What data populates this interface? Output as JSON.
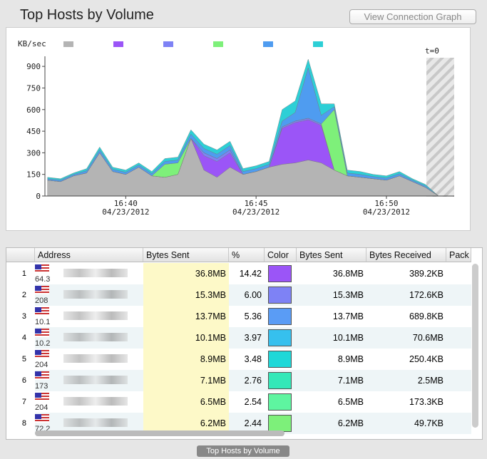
{
  "header": {
    "title": "Top Hosts by Volume",
    "button": "View Connection Graph"
  },
  "chart_data": {
    "type": "area",
    "stacked": true,
    "y_label": "KB/sec",
    "annotation": "t=0",
    "x": [
      37,
      37.5,
      38,
      38.5,
      39,
      39.5,
      40,
      40.5,
      41,
      41.5,
      42,
      42.5,
      43,
      43.5,
      44,
      44.5,
      45,
      45.5,
      46,
      46.5,
      47,
      47.5,
      48,
      48.5,
      49,
      49.5,
      50,
      50.5,
      51,
      51.5,
      52
    ],
    "xlim": [
      36.9,
      52.6
    ],
    "xticks": [
      {
        "value": 40,
        "label": "16:40"
      },
      {
        "value": 45,
        "label": "16:45"
      },
      {
        "value": 50,
        "label": "16:50"
      }
    ],
    "x_date_label": "04/23/2012",
    "ylim": [
      0,
      970
    ],
    "yticks": [
      0,
      150,
      300,
      450,
      600,
      750,
      900
    ],
    "series": [
      {
        "color": "#b4b4b4",
        "values": [
          110,
          100,
          140,
          160,
          300,
          170,
          150,
          200,
          140,
          130,
          150,
          400,
          180,
          130,
          200,
          150,
          170,
          200,
          220,
          230,
          250,
          230,
          180,
          140,
          130,
          120,
          110,
          140,
          100,
          60,
          0
        ]
      },
      {
        "color": "#9b55f7",
        "values": [
          0,
          0,
          0,
          0,
          0,
          0,
          0,
          0,
          0,
          0,
          0,
          0,
          100,
          110,
          100,
          0,
          0,
          0,
          250,
          280,
          280,
          260,
          0,
          0,
          0,
          0,
          0,
          0,
          0,
          0,
          0
        ]
      },
      {
        "color": "#7e82f5",
        "values": [
          0,
          0,
          0,
          0,
          0,
          0,
          0,
          0,
          0,
          0,
          0,
          0,
          20,
          20,
          20,
          0,
          0,
          0,
          10,
          10,
          10,
          10,
          0,
          0,
          0,
          0,
          0,
          0,
          0,
          0,
          0
        ]
      },
      {
        "color": "#7ef07a",
        "values": [
          0,
          0,
          0,
          0,
          0,
          0,
          0,
          0,
          0,
          90,
          80,
          0,
          0,
          0,
          0,
          0,
          0,
          0,
          0,
          0,
          0,
          0,
          420,
          0,
          0,
          0,
          0,
          0,
          0,
          0,
          0
        ]
      },
      {
        "color": "#4f9cf0",
        "values": [
          10,
          10,
          10,
          15,
          20,
          15,
          15,
          15,
          15,
          20,
          20,
          30,
          30,
          30,
          30,
          20,
          20,
          20,
          40,
          60,
          350,
          60,
          20,
          20,
          20,
          15,
          15,
          15,
          10,
          10,
          0
        ]
      },
      {
        "color": "#2dcfd6",
        "values": [
          10,
          10,
          10,
          15,
          20,
          15,
          15,
          15,
          15,
          20,
          20,
          30,
          30,
          30,
          30,
          20,
          20,
          20,
          80,
          80,
          60,
          80,
          20,
          20,
          20,
          15,
          15,
          15,
          10,
          10,
          0
        ]
      }
    ]
  },
  "table": {
    "columns": [
      "Address",
      "Bytes Sent",
      "%",
      "Color",
      "Bytes Sent",
      "Bytes Received",
      "Pack"
    ],
    "rows": [
      [
        "1",
        "64.3",
        "36.8MB",
        "14.42",
        "#9b55f7",
        "36.8MB",
        "389.2KB"
      ],
      [
        "2",
        "208",
        "15.3MB",
        "6.00",
        "#7e82f5",
        "15.3MB",
        "172.6KB"
      ],
      [
        "3",
        "10.1",
        "13.7MB",
        "5.36",
        "#5a9cf5",
        "13.7MB",
        "689.8KB"
      ],
      [
        "4",
        "10.2",
        "10.1MB",
        "3.97",
        "#36c0ee",
        "10.1MB",
        "70.6MB"
      ],
      [
        "5",
        "204",
        "8.9MB",
        "3.48",
        "#1fd8d8",
        "8.9MB",
        "250.4KB"
      ],
      [
        "6",
        "173",
        "7.1MB",
        "2.76",
        "#33e8b8",
        "7.1MB",
        "2.5MB"
      ],
      [
        "7",
        "204",
        "6.5MB",
        "2.54",
        "#5ef5a0",
        "6.5MB",
        "173.3KB"
      ],
      [
        "8",
        "72.2",
        "6.2MB",
        "2.44",
        "#7df07a",
        "6.2MB",
        "49.7KB"
      ]
    ]
  },
  "footer": {
    "tab": "Top Hosts by Volume"
  }
}
